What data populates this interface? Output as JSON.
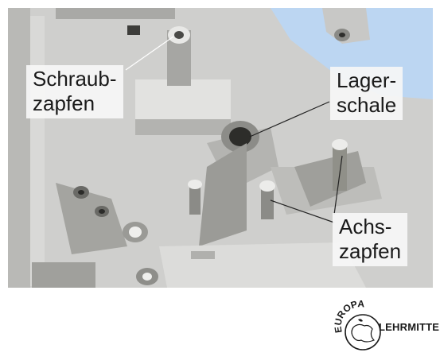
{
  "labels": {
    "schraubzapfen": {
      "line1": "Schraub-",
      "line2": "zapfen"
    },
    "lagerschale": {
      "line1": "Lager-",
      "line2": "schale"
    },
    "achszapfen": {
      "line1": "Achs-",
      "line2": "zapfen"
    }
  },
  "logo": {
    "arc_text": "EUROPA",
    "side_text": "LEHRMITTEL"
  },
  "colors": {
    "background_blue": "#bcd6f2",
    "plastic_grey": "#cfcfcd",
    "shadow": "#7c7c78"
  }
}
